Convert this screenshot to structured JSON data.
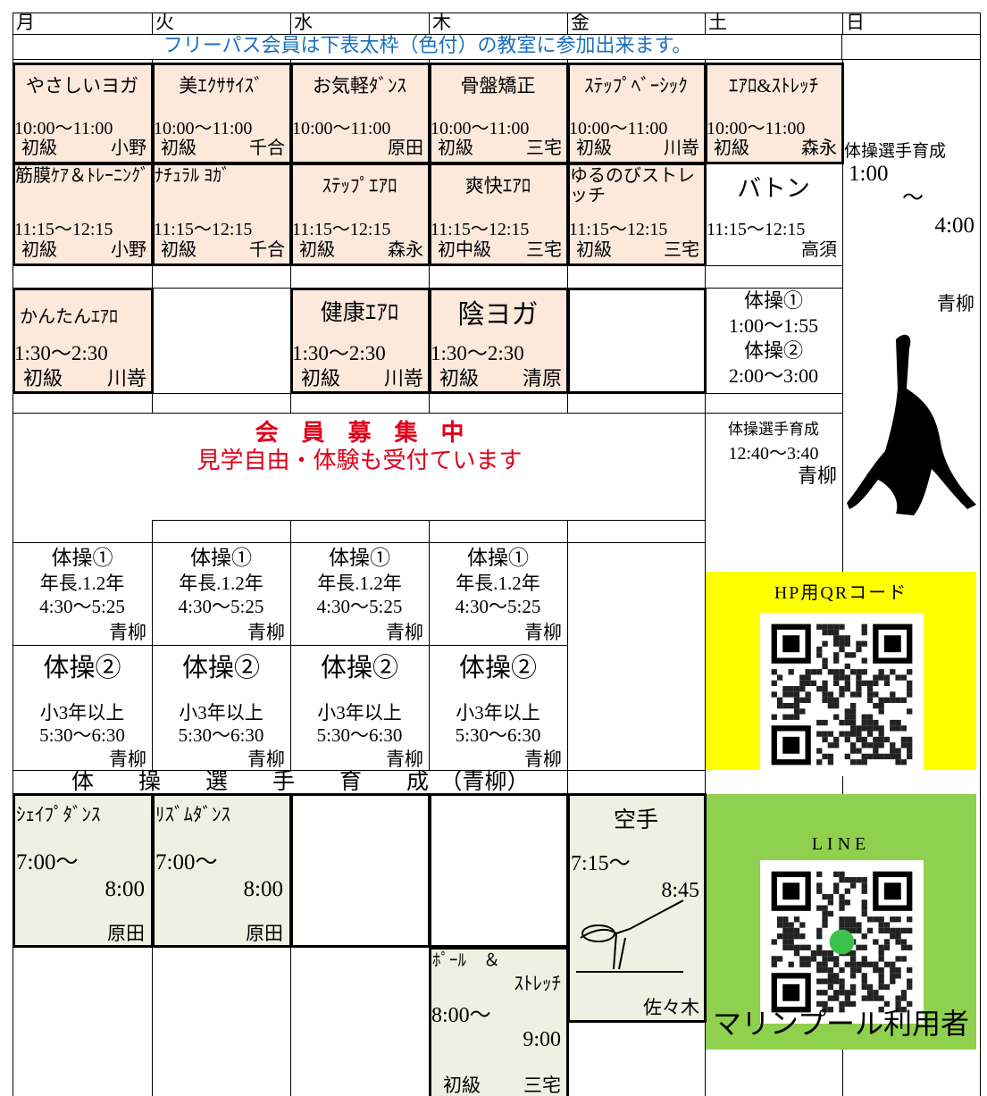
{
  "days": [
    "月",
    "火",
    "水",
    "木",
    "金",
    "土",
    "日"
  ],
  "notice": "フリーパス会員は下表太枠（色付）の教室に参加出来ます。",
  "morning_1": [
    {
      "name": "やさしいヨガ",
      "time": "10:00～11:00",
      "level": "初級",
      "teacher": "小野"
    },
    {
      "name": "美ｴｸｻｻｲｽﾞ",
      "time": "10:00～11:00",
      "level": "初級",
      "teacher": "千合"
    },
    {
      "name": "お気軽ﾀﾞﾝｽ",
      "time": "10:00～11:00",
      "teacher": "原田"
    },
    {
      "name": "骨盤矯正",
      "time": "10:00～11:00",
      "level": "初級",
      "teacher": "三宅"
    },
    {
      "name": "ｽﾃｯﾌﾟﾍﾞｰｼｯｸ",
      "time": "10:00～11:00",
      "level": "初級",
      "teacher": "川嵜"
    },
    {
      "name": "ｴｱﾛ&ｽﾄﾚｯﾁ",
      "time": "10:00～11:00",
      "level": "初級",
      "teacher": "森永"
    }
  ],
  "morning_2": [
    {
      "name": "筋膜ｹｱ＆ﾄﾚｰﾆﾝｸﾞ",
      "time": "11:15～12:15",
      "level": "初級",
      "teacher": "小野"
    },
    {
      "name": "ﾅﾁｭﾗﾙ ﾖｶﾞ",
      "time": "11:15～12:15",
      "level": "初級",
      "teacher": "千合"
    },
    {
      "name": "ｽﾃｯﾌﾟｴｱﾛ",
      "time": "11:15～12:15",
      "level": "初級",
      "teacher": "森永"
    },
    {
      "name": "爽快ｴｱﾛ",
      "time": "11:15～12:15",
      "level": "初中級",
      "teacher": "三宅"
    },
    {
      "name": "ゆるのびストレッチ",
      "time": "11:15～12:15",
      "level": "初級",
      "teacher": "三宅"
    },
    {
      "name": "バトン",
      "time": "11:15～12:15",
      "teacher": "高須"
    }
  ],
  "sunday": {
    "name": "体操選手育成",
    "start": "1:00",
    "sep": "～",
    "end": "4:00",
    "teacher": "青柳"
  },
  "afternoon": [
    {
      "name": "かんたんｴｱﾛ",
      "time": "1:30～2:30",
      "level": "初級",
      "teacher": "川嵜"
    },
    {
      "name": "健康ｴｱﾛ",
      "time": "1:30～2:30",
      "level": "初級",
      "teacher": "川嵜"
    },
    {
      "name": "陰ヨガ",
      "time": "1:30～2:30",
      "level": "初級",
      "teacher": "清原"
    }
  ],
  "saturday_afternoon": {
    "class_1": "体操①",
    "time_1": "1:00～1:55",
    "class_2": "体操②",
    "time_2": "2:00～3:00",
    "class_3": "体操選手育成",
    "time_3": "12:40～3:40",
    "teacher": "青柳"
  },
  "recruit": {
    "title": "会　員　募　集　中",
    "subtitle": "見学自由・体験も受付ています"
  },
  "kids_1": [
    {
      "name": "体操①",
      "grade": "年長.1.2年",
      "time": "4:30～5:25",
      "teacher": "青柳"
    },
    {
      "name": "体操①",
      "grade": "年長.1.2年",
      "time": "4:30～5:25",
      "teacher": "青柳"
    },
    {
      "name": "体操①",
      "grade": "年長.1.2年",
      "time": "4:30～5:25",
      "teacher": "青柳"
    },
    {
      "name": "体操①",
      "grade": "年長.1.2年",
      "time": "4:30～5:25",
      "teacher": "青柳"
    }
  ],
  "kids_2": [
    {
      "name": "体操②",
      "grade": "小3年以上",
      "time": "5:30～6:30",
      "teacher": "青柳"
    },
    {
      "name": "体操②",
      "grade": "小3年以上",
      "time": "5:30～6:30",
      "teacher": "青柳"
    },
    {
      "name": "体操②",
      "grade": "小3年以上",
      "time": "5:30～6:30",
      "teacher": "青柳"
    },
    {
      "name": "体操②",
      "grade": "小3年以上",
      "time": "5:30～6:30",
      "teacher": "青柳"
    }
  ],
  "training_banner": "体　　操　　選　　手　　育　　成　（青柳）",
  "qr_hp": {
    "title": "HP用QRコード"
  },
  "evening": [
    {
      "name": "ｼｪｲﾌﾟﾀﾞﾝｽ",
      "start": "7:00～",
      "end": "8:00",
      "teacher": "原田"
    },
    {
      "name": "ﾘｽﾞﾑﾀﾞﾝｽ",
      "start": "7:00～",
      "end": "8:00",
      "teacher": "原田"
    }
  ],
  "karate": {
    "name": "空手",
    "start": "7:15～",
    "end": "8:45",
    "teacher": "佐々木"
  },
  "late": {
    "name_1": "ﾎﾟｰﾙ　＆",
    "name_2": "ｽﾄﾚｯﾁ",
    "start": "8:00～",
    "end": "9:00",
    "level": "初級",
    "teacher": "三宅"
  },
  "line": {
    "title": "LINE",
    "caption": "マリンプール利用者"
  }
}
